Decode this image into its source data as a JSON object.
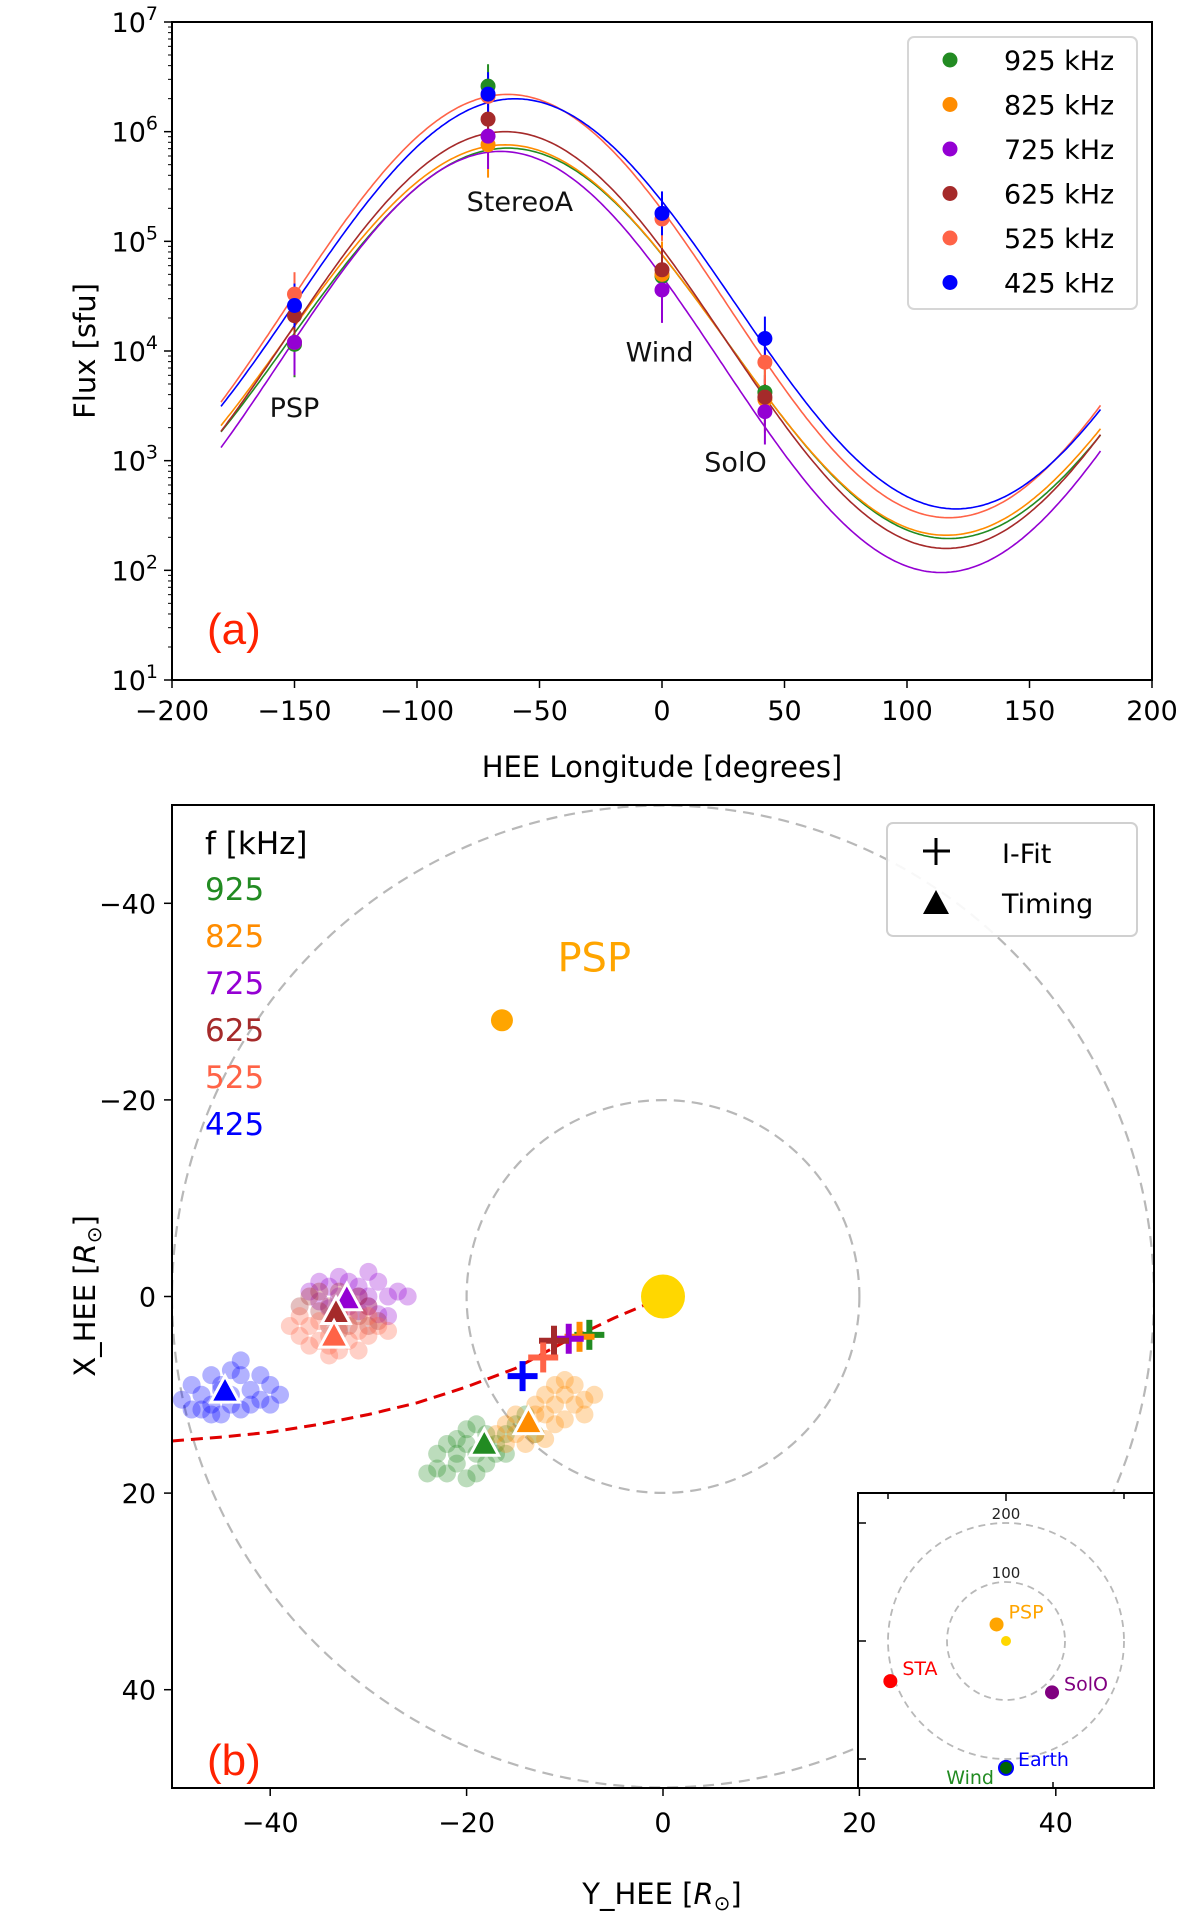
{
  "chart_data": [
    {
      "type": "scatter",
      "panel_label": "(a)",
      "panel_label_color": "#ff2200",
      "xlabel": "HEE Longitude [degrees]",
      "ylabel": "Flux [sfu]",
      "xlim": [
        -200,
        200
      ],
      "ylim": [
        10,
        10000000
      ],
      "yscale": "log",
      "xticks": [
        -200,
        -150,
        -100,
        -50,
        0,
        50,
        100,
        150,
        200
      ],
      "xtick_labels": [
        "−200",
        "−150",
        "−100",
        "−50",
        "0",
        "50",
        "100",
        "150",
        "200"
      ],
      "yticks_exp": [
        1,
        2,
        3,
        4,
        5,
        6,
        7
      ],
      "ytick_base": "10",
      "grid": false,
      "legend_position": "top-right",
      "spacecraft_labels": [
        {
          "text": "PSP",
          "x": -150,
          "flux": 2500
        },
        {
          "text": "StereoA",
          "x": -58,
          "flux": 190000
        },
        {
          "text": "Wind",
          "x": -1,
          "flux": 8000
        },
        {
          "text": "SolO",
          "x": 30,
          "flux": 800
        }
      ],
      "observation_longitudes": {
        "PSP": -150,
        "StereoA": -71,
        "Wind": 0,
        "SolO": 42
      },
      "fit_model": "log10(F) = center + amplitude * cos(longitude - peak_longitude)",
      "fit_range": [
        -180,
        179
      ],
      "series": [
        {
          "name": "925 kHz",
          "color": "#228b22",
          "points": [
            [
              -150,
              11500
            ],
            [
              -71,
              2600000
            ],
            [
              0,
              48000
            ],
            [
              42,
              4200
            ]
          ],
          "errors_dex": [
            0.3,
            0.2,
            0.3,
            0.3
          ],
          "fit": {
            "center": 4.07,
            "amplitude": 1.78,
            "peak_longitude": -63
          }
        },
        {
          "name": "825 kHz",
          "color": "#ff8c00",
          "points": [
            [
              -150,
              12000
            ],
            [
              -71,
              760000
            ],
            [
              0,
              50000
            ],
            [
              42,
              3600
            ]
          ],
          "errors_dex": [
            0.3,
            0.3,
            0.3,
            0.3
          ],
          "fit": {
            "center": 4.1,
            "amplitude": 1.78,
            "peak_longitude": -64
          }
        },
        {
          "name": "725 kHz",
          "color": "#9400d3",
          "points": [
            [
              -150,
              12000
            ],
            [
              -71,
              910000
            ],
            [
              0,
              36000
            ],
            [
              42,
              2800
            ]
          ],
          "errors_dex": [
            0.3,
            0.3,
            0.3,
            0.3
          ],
          "fit": {
            "center": 3.9,
            "amplitude": 1.92,
            "peak_longitude": -66
          }
        },
        {
          "name": "625 kHz",
          "color": "#a52a2a",
          "points": [
            [
              -150,
              21000
            ],
            [
              -71,
              1300000
            ],
            [
              0,
              55000
            ],
            [
              42,
              3800
            ]
          ],
          "errors_dex": [
            0.2,
            0.2,
            0.2,
            0.2
          ],
          "fit": {
            "center": 4.1,
            "amplitude": 1.9,
            "peak_longitude": -64
          }
        },
        {
          "name": "525 kHz",
          "color": "#ff6347",
          "points": [
            [
              -150,
              33000
            ],
            [
              -71,
              2100000
            ],
            [
              0,
              160000
            ],
            [
              42,
              7900
            ]
          ],
          "errors_dex": [
            0.2,
            0.2,
            0.2,
            0.2
          ],
          "fit": {
            "center": 4.41,
            "amplitude": 1.93,
            "peak_longitude": -63
          }
        },
        {
          "name": "425 kHz",
          "color": "#0000ff",
          "points": [
            [
              -150,
              26000
            ],
            [
              -71,
              2200000
            ],
            [
              0,
              180000
            ],
            [
              42,
              13000
            ]
          ],
          "errors_dex": [
            0.2,
            0.2,
            0.2,
            0.2
          ],
          "fit": {
            "center": 4.43,
            "amplitude": 1.87,
            "peak_longitude": -60
          }
        }
      ]
    },
    {
      "type": "scatter",
      "panel_label": "(b)",
      "panel_label_color": "#ff2200",
      "xlabel": "Y_HEE [R☉]",
      "xlabel_main": "Y_HEE [",
      "ylabel_main": "X_HEE [",
      "axis_unit_symbol": "R",
      "axis_unit_subscript": "⊙",
      "ylabel": "X_HEE [R☉]",
      "xlim": [
        -50,
        50
      ],
      "ylim": [
        -50,
        50
      ],
      "y_inverted": true,
      "xticks": [
        -40,
        -20,
        0,
        20,
        40
      ],
      "xtick_labels": [
        "−40",
        "−20",
        "0",
        "20",
        "40"
      ],
      "yticks": [
        -40,
        -20,
        0,
        20,
        40
      ],
      "ytick_labels": [
        "−40",
        "−20",
        "0",
        "20",
        "40"
      ],
      "grid": false,
      "legend_position": "top-right",
      "legend": [
        {
          "marker": "+",
          "label": "I-Fit"
        },
        {
          "marker": "triangle",
          "label": "Timing"
        }
      ],
      "freq_legend_title": "f [kHz]",
      "freq_legend": [
        {
          "label": "925",
          "color": "#228b22"
        },
        {
          "label": "825",
          "color": "#ff8c00"
        },
        {
          "label": "725",
          "color": "#9400d3"
        },
        {
          "label": "625",
          "color": "#a52a2a"
        },
        {
          "label": "525",
          "color": "#ff6347"
        },
        {
          "label": "425",
          "color": "#0000ff"
        }
      ],
      "reference_circles_radius": [
        20,
        50
      ],
      "sun": {
        "y": 0,
        "x": 0,
        "color": "#ffd700"
      },
      "psp": {
        "label": "PSP",
        "y": -16.4,
        "x": -28.1,
        "color": "#ffa500",
        "label_y": -7,
        "label_x": -34.5
      },
      "parker_spiral": {
        "color": "#e00000",
        "points": [
          [
            -1,
            0.5
          ],
          [
            -5,
            2.2
          ],
          [
            -10,
            4.6
          ],
          [
            -15,
            7.3
          ],
          [
            -20,
            9.2
          ],
          [
            -25,
            10.8
          ],
          [
            -30,
            12
          ],
          [
            -35,
            13
          ],
          [
            -40,
            13.8
          ],
          [
            -45,
            14.3
          ],
          [
            -50,
            14.7
          ]
        ]
      },
      "ifit": [
        {
          "freq": "925",
          "y": -7.5,
          "x": 3.9
        },
        {
          "freq": "825",
          "y": -8.5,
          "x": 4.1
        },
        {
          "freq": "725",
          "y": -9.6,
          "x": 4.3
        },
        {
          "freq": "625",
          "y": -11.1,
          "x": 4.5
        },
        {
          "freq": "525",
          "y": -12.2,
          "x": 6.2
        },
        {
          "freq": "425",
          "y": -14.3,
          "x": 8.1
        }
      ],
      "timing": [
        {
          "freq": "925",
          "y": -18.2,
          "x": 15.0
        },
        {
          "freq": "825",
          "y": -13.7,
          "x": 12.8
        },
        {
          "freq": "725",
          "y": -32.2,
          "x": 0.2
        },
        {
          "freq": "625",
          "y": -33.3,
          "x": 1.6
        },
        {
          "freq": "525",
          "y": -33.5,
          "x": 4.0
        },
        {
          "freq": "425",
          "y": -44.6,
          "x": 9.6
        }
      ],
      "timing_clouds": [
        {
          "freq": "925",
          "points": [
            [
              -20,
              15
            ],
            [
              -21,
              17
            ],
            [
              -19,
              16
            ],
            [
              -22,
              18
            ],
            [
              -18,
              14
            ],
            [
              -17,
              16
            ],
            [
              -20,
              18.5
            ],
            [
              -23,
              16
            ],
            [
              -16,
              14
            ],
            [
              -19,
              13
            ],
            [
              -21,
              14.5
            ],
            [
              -18,
              17
            ],
            [
              -22,
              15
            ],
            [
              -24,
              18
            ],
            [
              -17,
              15
            ],
            [
              -15,
              13
            ],
            [
              -16,
              16
            ],
            [
              -20,
              13.5
            ],
            [
              -19,
              18
            ],
            [
              -13,
              14
            ],
            [
              -14,
              12
            ],
            [
              -21,
              16
            ],
            [
              -23,
              17.5
            ],
            [
              -18,
              15
            ]
          ]
        },
        {
          "freq": "825",
          "points": [
            [
              -14,
              13
            ],
            [
              -12,
              12
            ],
            [
              -11,
              11
            ],
            [
              -13,
              14
            ],
            [
              -15,
              14
            ],
            [
              -10,
              10
            ],
            [
              -9,
              11
            ],
            [
              -12,
              10
            ],
            [
              -16,
              13
            ],
            [
              -11,
              13
            ],
            [
              -8,
              10.5
            ],
            [
              -7,
              10
            ],
            [
              -13,
              11
            ],
            [
              -10,
              12.5
            ],
            [
              -17,
              14
            ],
            [
              -15,
              12
            ],
            [
              -9,
              9
            ],
            [
              -12,
              14.5
            ],
            [
              -14,
              15
            ],
            [
              -11,
              9
            ],
            [
              -8,
              12
            ],
            [
              -16,
              15
            ],
            [
              -13,
              12
            ],
            [
              -10,
              8.5
            ]
          ]
        },
        {
          "freq": "725",
          "points": [
            [
              -33,
              0
            ],
            [
              -31,
              -1
            ],
            [
              -30,
              0
            ],
            [
              -34,
              -1
            ],
            [
              -32,
              1
            ],
            [
              -29,
              -1.5
            ],
            [
              -35,
              0.5
            ],
            [
              -31,
              1.5
            ],
            [
              -28,
              0
            ],
            [
              -33,
              -2
            ],
            [
              -30,
              1
            ],
            [
              -36,
              -0.5
            ],
            [
              -27,
              -0.5
            ],
            [
              -32,
              -1.5
            ],
            [
              -34,
              1.2
            ],
            [
              -29,
              1.8
            ],
            [
              -26,
              0
            ],
            [
              -31,
              0
            ],
            [
              -35,
              -1.5
            ],
            [
              -30,
              -2.5
            ],
            [
              -33,
              2
            ],
            [
              -28,
              2
            ]
          ]
        },
        {
          "freq": "625",
          "points": [
            [
              -34,
              1
            ],
            [
              -33,
              2
            ],
            [
              -32,
              0.5
            ],
            [
              -35,
              1.5
            ],
            [
              -31,
              2
            ],
            [
              -36,
              0
            ],
            [
              -33,
              -0.5
            ],
            [
              -30,
              1
            ],
            [
              -34,
              3
            ],
            [
              -32,
              3
            ],
            [
              -37,
              1
            ],
            [
              -29,
              2.5
            ],
            [
              -35,
              -0.5
            ],
            [
              -31,
              0
            ],
            [
              -33,
              3.5
            ],
            [
              -30,
              3
            ]
          ]
        },
        {
          "freq": "525",
          "points": [
            [
              -34,
              4
            ],
            [
              -33,
              3
            ],
            [
              -35,
              2.5
            ],
            [
              -32,
              4.5
            ],
            [
              -36,
              3
            ],
            [
              -31,
              3.5
            ],
            [
              -34,
              5
            ],
            [
              -37,
              2
            ],
            [
              -33,
              5.5
            ],
            [
              -30,
              4
            ],
            [
              -35,
              4.5
            ],
            [
              -32,
              2
            ],
            [
              -36,
              5
            ],
            [
              -29,
              3
            ],
            [
              -31,
              5.5
            ],
            [
              -38,
              3
            ],
            [
              -33,
              1.5
            ],
            [
              -30,
              2
            ],
            [
              -34,
              6
            ],
            [
              -28,
              3.5
            ],
            [
              -37,
              4
            ]
          ]
        },
        {
          "freq": "425",
          "points": [
            [
              -45,
              9
            ],
            [
              -44,
              10
            ],
            [
              -46,
              11
            ],
            [
              -43,
              8
            ],
            [
              -42,
              9.5
            ],
            [
              -47,
              10
            ],
            [
              -48,
              9
            ],
            [
              -41,
              10.5
            ],
            [
              -44,
              7.5
            ],
            [
              -45,
              12
            ],
            [
              -43,
              11.5
            ],
            [
              -40,
              9
            ],
            [
              -49,
              10.5
            ],
            [
              -46,
              8
            ],
            [
              -42,
              11
            ],
            [
              -41,
              8
            ],
            [
              -47,
              11.5
            ],
            [
              -39,
              10
            ],
            [
              -44,
              11
            ],
            [
              -48,
              11.5
            ],
            [
              -43,
              6.5
            ],
            [
              -45,
              9.5
            ],
            [
              -40,
              11
            ],
            [
              -46,
              12
            ]
          ]
        }
      ],
      "inset": {
        "circles": [
          {
            "radius": 100,
            "label": "100"
          },
          {
            "radius": 200,
            "label": "200"
          }
        ],
        "objects": [
          {
            "label": "PSP",
            "y": -16,
            "x": -28,
            "color": "#ffa500",
            "label_color": "#ffa500"
          },
          {
            "label": "STA",
            "y": -196,
            "x": 68,
            "color": "#ff0000",
            "label_color": "#ff0000"
          },
          {
            "label": "SolO",
            "y": 78,
            "x": 87,
            "color": "#800080",
            "label_color": "#800080"
          },
          {
            "label": "Earth",
            "y": 0,
            "x": 215,
            "color": "#006400",
            "label_color": "#0000ff",
            "edge": "#0000ff"
          },
          {
            "label": "Wind",
            "y": 0,
            "x": 215,
            "color": "#228b22",
            "label_color": "#228b22"
          }
        ]
      }
    }
  ]
}
